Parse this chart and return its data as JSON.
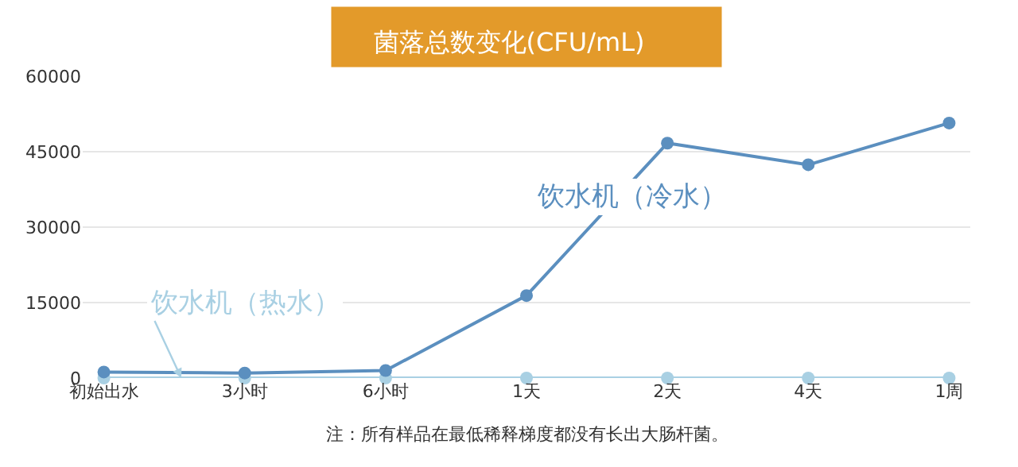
{
  "chart_data": {
    "type": "line",
    "title": "菌落总数变化(CFU/mL)",
    "categories": [
      "初始出水",
      "3小时",
      "6小时",
      "1天",
      "2天",
      "4天",
      "1周"
    ],
    "series": [
      {
        "name": "饮水机（冷水）",
        "color": "#5b8fbf",
        "values": [
          1200,
          1000,
          1500,
          16400,
          46700,
          42400,
          50700
        ]
      },
      {
        "name": "饮水机（热水）",
        "color": "#a9d0e3",
        "values": [
          0,
          0,
          0,
          0,
          0,
          0,
          0
        ]
      }
    ],
    "ylim": [
      0,
      60000
    ],
    "yticks": [
      0,
      15000,
      30000,
      45000,
      60000
    ],
    "grid": "y",
    "legend": false,
    "marker": "circle",
    "line_style": "solid",
    "annotations": [
      "注：所有样品在最低稀释梯度都没有长出大肠杆菌。"
    ]
  }
}
